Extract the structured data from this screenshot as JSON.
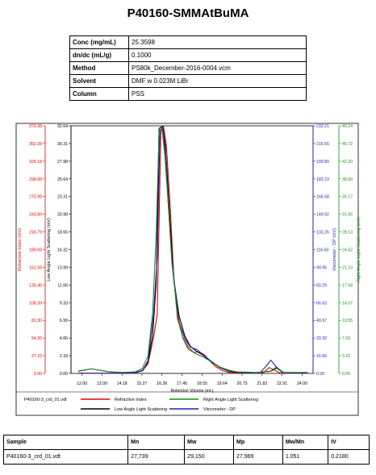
{
  "title": "P40160-SMMAtBuMA",
  "info": [
    {
      "key": "Conc (mg/mL)",
      "value": "25.3598"
    },
    {
      "key": "dn/dc (mL/g)",
      "value": "0.1000"
    },
    {
      "key": "Method",
      "value": "PS80k_December-2016-0004.vcm"
    },
    {
      "key": "Solvent",
      "value": "DMF w 0.023M LiBr"
    },
    {
      "key": "Column",
      "value": "PSS"
    }
  ],
  "chart_data": {
    "type": "line",
    "xlabel": "Retention Volume (mL)",
    "xlim": [
      11.4,
      24.6
    ],
    "x_ticks": [
      "12.00",
      "13.09",
      "14.18",
      "15.27",
      "16.36",
      "17.45",
      "18.55",
      "19.64",
      "20.73",
      "21.82",
      "22.91",
      "24.00"
    ],
    "axes": [
      {
        "label": "Refractive Index (mV)",
        "color": "#e00000",
        "ticks": [
          "0.00",
          "27.10",
          "54.20",
          "81.30",
          "108.39",
          "135.49",
          "162.59",
          "189.69",
          "216.79",
          "243.89",
          "270.98",
          "298.08",
          "325.18",
          "352.28",
          "379.38"
        ]
      },
      {
        "label": "Low Angle Light Scattering (mV)",
        "color": "#000000",
        "ticks": [
          "0.00",
          "2.33",
          "4.66",
          "6.99",
          "9.33",
          "11.66",
          "13.99",
          "16.32",
          "18.65",
          "20.98",
          "23.31",
          "25.64",
          "27.98",
          "30.31",
          "32.64"
        ]
      },
      {
        "label": "Viscometer - DP (mV)",
        "color": "#1f1fb0",
        "ticks": [
          "0.00",
          "16.66",
          "33.32",
          "49.97",
          "66.63",
          "83.29",
          "99.95",
          "116.60",
          "133.26",
          "149.92",
          "166.58",
          "183.23",
          "199.89",
          "216.55",
          "233.21"
        ]
      },
      {
        "label": "Right Angle Light Scattering (mV)",
        "color": "#1a8a1a",
        "ticks": [
          "0.00",
          "3.52",
          "7.03",
          "10.55",
          "14.07",
          "17.58",
          "21.10",
          "24.62",
          "28.13",
          "31.65",
          "35.17",
          "38.69",
          "42.20",
          "45.72",
          "49.24"
        ]
      }
    ],
    "series": [
      {
        "name": "Refractive Index",
        "color": "#e00000",
        "x": [
          11.8,
          12.6,
          13.2,
          13.6,
          14.2,
          14.9,
          15.3,
          15.6,
          15.9,
          16.1,
          16.3,
          16.45,
          16.6,
          16.8,
          17.0,
          17.2,
          17.5,
          17.8,
          18.1,
          18.4,
          18.7,
          19.0,
          19.3,
          19.7,
          20.0,
          20.4,
          20.8,
          21.5,
          21.9,
          22.2,
          22.5,
          22.8,
          23.2,
          24.3
        ],
        "y": [
          0.2,
          0.2,
          0.2,
          0.2,
          0.3,
          1.0,
          4.0,
          15.0,
          55.0,
          90.0,
          370.0,
          378.0,
          350.0,
          260.0,
          150.0,
          85.0,
          55.0,
          40.0,
          32.0,
          33.0,
          28.0,
          18.0,
          10.0,
          4.0,
          1.5,
          0.5,
          0.3,
          0.3,
          1.0,
          9.0,
          5.0,
          0.5,
          0.2,
          0.2
        ]
      },
      {
        "name": "Low Angle Light Scattering",
        "color": "#000000",
        "x": [
          11.8,
          12.5,
          13.0,
          13.5,
          14.2,
          14.9,
          15.3,
          15.6,
          15.85,
          16.05,
          16.2,
          16.4,
          16.6,
          16.8,
          17.0,
          17.3,
          17.6,
          17.9,
          18.2,
          18.6,
          19.0,
          19.5,
          20.0,
          20.5,
          21.5,
          22.3,
          22.6,
          23.0,
          24.3
        ],
        "y": [
          0.3,
          0.6,
          0.4,
          0.2,
          0.1,
          0.1,
          0.4,
          1.5,
          5.0,
          12.0,
          32.3,
          32.6,
          28.0,
          20.0,
          12.5,
          7.5,
          5.0,
          3.6,
          3.0,
          2.4,
          1.6,
          0.8,
          0.3,
          0.1,
          0.1,
          0.3,
          0.8,
          0.1,
          0.1
        ]
      },
      {
        "name": "Viscometer - DP",
        "color": "#1f1fb0",
        "x": [
          11.8,
          12.6,
          13.2,
          13.6,
          14.2,
          14.9,
          15.3,
          15.6,
          15.9,
          16.1,
          16.25,
          16.4,
          16.55,
          16.7,
          16.9,
          17.1,
          17.3,
          17.6,
          17.9,
          18.3,
          18.7,
          19.0,
          19.5,
          20.0,
          20.5,
          21.2,
          21.7,
          22.0,
          22.3,
          22.6,
          22.9,
          23.3,
          24.3
        ],
        "y": [
          0.2,
          0.2,
          0.2,
          0.2,
          0.2,
          0.5,
          2.5,
          12.0,
          55.0,
          110.0,
          228.0,
          233.0,
          215.0,
          160.0,
          110.0,
          75.0,
          48.0,
          33.0,
          25.0,
          22.0,
          16.0,
          12.0,
          6.0,
          3.0,
          1.0,
          0.2,
          0.5,
          6.0,
          12.5,
          6.0,
          1.0,
          0.2,
          0.2
        ]
      },
      {
        "name": "Right Angle Light Scattering",
        "color": "#1a8a1a",
        "x": [
          11.8,
          12.5,
          13.0,
          13.5,
          14.2,
          14.9,
          15.3,
          15.6,
          15.85,
          16.05,
          16.2,
          16.35,
          16.5,
          16.7,
          16.9,
          17.2,
          17.5,
          17.8,
          18.2,
          18.6,
          19.0,
          19.5,
          20.0,
          20.5,
          21.5,
          22.3,
          22.6,
          23.0,
          24.3
        ],
        "y": [
          0.4,
          0.9,
          0.6,
          0.3,
          0.2,
          0.3,
          1.0,
          3.5,
          12.0,
          28.0,
          48.0,
          49.0,
          44.0,
          34.0,
          22.0,
          12.0,
          7.0,
          4.8,
          3.9,
          3.3,
          2.4,
          1.3,
          0.6,
          0.3,
          0.2,
          0.4,
          1.0,
          0.2,
          0.2
        ]
      }
    ],
    "grid": false,
    "legend_position": "bottom"
  },
  "legend": {
    "file": "P40160-3_crd_01.vdt",
    "items": [
      {
        "name": "Refractive Index",
        "color": "#e00000"
      },
      {
        "name": "Right Angle Light Scattering",
        "color": "#1a8a1a"
      },
      {
        "name": "Low Angle Light Scattering",
        "color": "#000000"
      },
      {
        "name": "Viscometer - DP",
        "color": "#1f1fb0"
      }
    ]
  },
  "results": {
    "headers": [
      "Sample",
      "Mn",
      "Mw",
      "Mp",
      "Mw/Mn",
      "IV"
    ],
    "rows": [
      [
        "P40160-3_crd_01.vdt",
        "27,739",
        "29,150",
        "27,969",
        "1.051",
        "0.2180"
      ]
    ]
  }
}
